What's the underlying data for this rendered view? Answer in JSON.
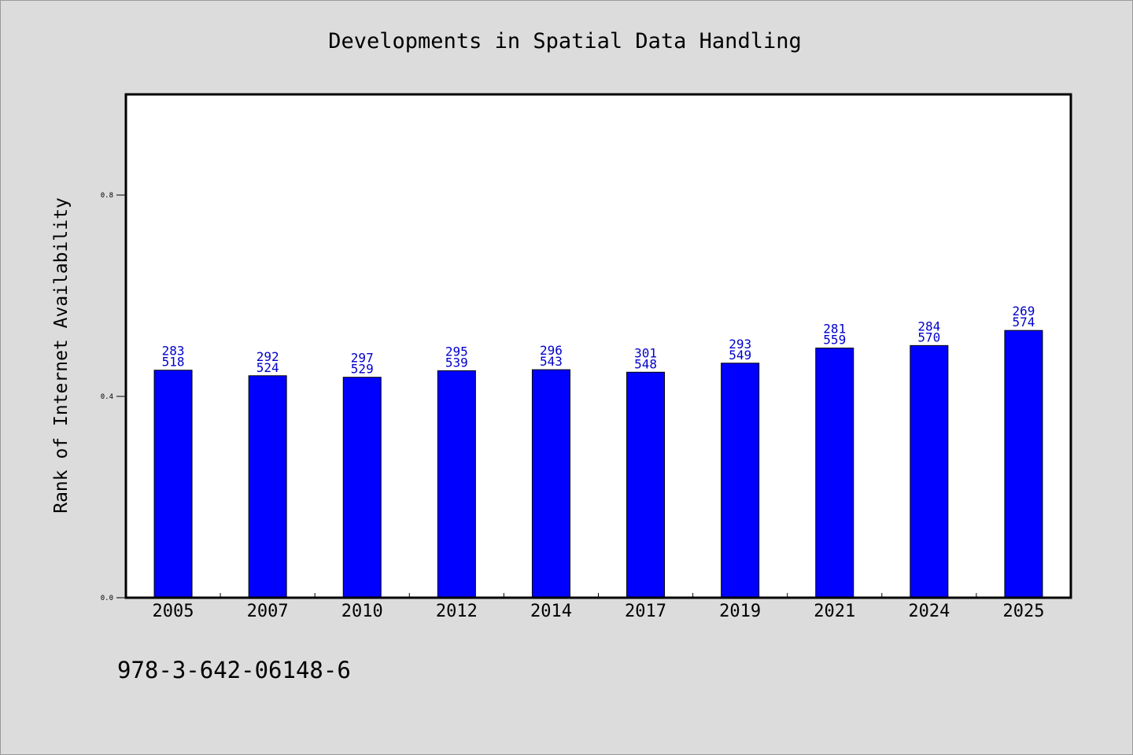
{
  "chart_data": {
    "type": "bar",
    "title": "Developments in Spatial Data Handling",
    "xlabel": "",
    "ylabel": "Rank of Internet Availability",
    "categories": [
      "2005",
      "2007",
      "2010",
      "2012",
      "2014",
      "2017",
      "2019",
      "2021",
      "2024",
      "2025"
    ],
    "values": [
      0.452,
      0.441,
      0.438,
      0.451,
      0.453,
      0.448,
      0.466,
      0.496,
      0.501,
      0.531
    ],
    "labels_top": [
      "283",
      "292",
      "297",
      "295",
      "296",
      "301",
      "293",
      "281",
      "284",
      "269"
    ],
    "labels_bottom": [
      "518",
      "524",
      "529",
      "539",
      "543",
      "548",
      "549",
      "559",
      "570",
      "574"
    ],
    "yticks": [
      "0.0",
      "0.4",
      "0.8"
    ],
    "ylim": [
      0,
      1.0
    ],
    "grid": false,
    "bar_color": "#0000ff",
    "label_color": "#0000cc",
    "background_color": "#dcdcdc"
  },
  "footer_text": "978-3-642-06148-6"
}
